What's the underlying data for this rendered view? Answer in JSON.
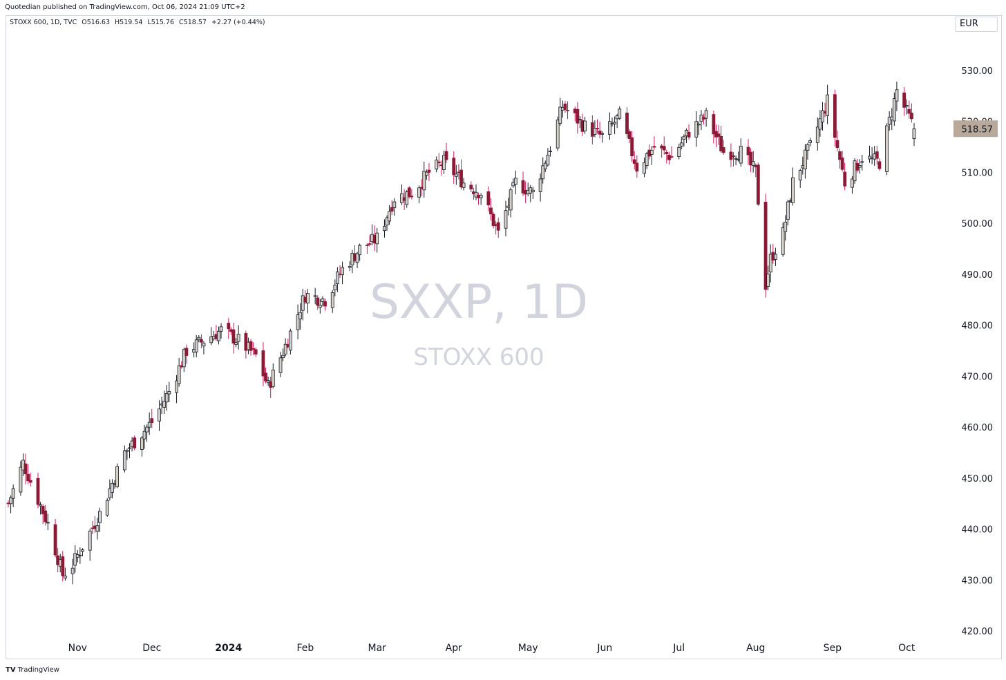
{
  "header": {
    "published": "Quotedian published on TradingView.com, Oct 06, 2024 21:09 UTC+2",
    "symbol_line": "STOXX 600, 1D, TVC",
    "open": "O516.63",
    "high": "H519.54",
    "low": "L515.76",
    "close": "C518.57",
    "change": "+2.27 (+0.44%)",
    "currency": "EUR"
  },
  "watermark": {
    "symbol": "SXXP, 1D",
    "name": "STOXX 600"
  },
  "footer": {
    "brand": "TradingView",
    "logo_icon": "tradingview-logo-icon"
  },
  "colors": {
    "up_body": "#d5d1c9",
    "up_border": "#131722",
    "down_body": "#8b1a36",
    "down_wick": "#d4145a",
    "last_price_bg": "#b8a99a"
  },
  "chart_data": {
    "type": "candlestick",
    "title": "STOXX 600, 1D, TVC",
    "ylim": [
      420,
      530
    ],
    "y_ticks": [
      "530.00",
      "520.00",
      "510.00",
      "500.00",
      "490.00",
      "480.00",
      "470.00",
      "460.00",
      "450.00",
      "440.00",
      "430.00",
      "420.00"
    ],
    "x_ticks": [
      "Nov",
      "Dec",
      "2024",
      "Feb",
      "Mar",
      "Apr",
      "May",
      "Jun",
      "Jul",
      "Aug",
      "Sep",
      "Oct"
    ],
    "last_price": "518.57",
    "close_series_key_points": [
      {
        "date": "2023-10-04",
        "close": 445
      },
      {
        "date": "2023-10-10",
        "close": 453
      },
      {
        "date": "2023-10-20",
        "close": 441
      },
      {
        "date": "2023-10-26",
        "close": 431
      },
      {
        "date": "2023-10-30",
        "close": 433
      },
      {
        "date": "2023-11-10",
        "close": 443
      },
      {
        "date": "2023-11-20",
        "close": 455
      },
      {
        "date": "2023-12-01",
        "close": 461
      },
      {
        "date": "2023-12-08",
        "close": 467
      },
      {
        "date": "2023-12-15",
        "close": 475
      },
      {
        "date": "2023-12-29",
        "close": 479
      },
      {
        "date": "2024-01-05",
        "close": 477
      },
      {
        "date": "2024-01-12",
        "close": 474
      },
      {
        "date": "2024-01-17",
        "close": 468
      },
      {
        "date": "2024-01-24",
        "close": 476
      },
      {
        "date": "2024-02-01",
        "close": 486
      },
      {
        "date": "2024-02-09",
        "close": 485
      },
      {
        "date": "2024-02-16",
        "close": 491
      },
      {
        "date": "2024-02-23",
        "close": 495
      },
      {
        "date": "2024-03-01",
        "close": 497
      },
      {
        "date": "2024-03-08",
        "close": 505
      },
      {
        "date": "2024-03-15",
        "close": 506
      },
      {
        "date": "2024-03-22",
        "close": 510
      },
      {
        "date": "2024-03-28",
        "close": 512
      },
      {
        "date": "2024-04-05",
        "close": 508
      },
      {
        "date": "2024-04-12",
        "close": 506
      },
      {
        "date": "2024-04-19",
        "close": 498
      },
      {
        "date": "2024-04-26",
        "close": 508
      },
      {
        "date": "2024-05-03",
        "close": 506
      },
      {
        "date": "2024-05-10",
        "close": 515
      },
      {
        "date": "2024-05-15",
        "close": 523
      },
      {
        "date": "2024-05-24",
        "close": 519
      },
      {
        "date": "2024-05-31",
        "close": 517
      },
      {
        "date": "2024-06-07",
        "close": 521
      },
      {
        "date": "2024-06-14",
        "close": 511
      },
      {
        "date": "2024-06-21",
        "close": 515
      },
      {
        "date": "2024-06-28",
        "close": 513
      },
      {
        "date": "2024-07-05",
        "close": 518
      },
      {
        "date": "2024-07-12",
        "close": 521
      },
      {
        "date": "2024-07-19",
        "close": 514
      },
      {
        "date": "2024-07-26",
        "close": 514
      },
      {
        "date": "2024-08-01",
        "close": 510
      },
      {
        "date": "2024-08-05",
        "close": 488
      },
      {
        "date": "2024-08-07",
        "close": 493
      },
      {
        "date": "2024-08-12",
        "close": 498
      },
      {
        "date": "2024-08-16",
        "close": 508
      },
      {
        "date": "2024-08-23",
        "close": 515
      },
      {
        "date": "2024-08-30",
        "close": 524
      },
      {
        "date": "2024-09-06",
        "close": 508
      },
      {
        "date": "2024-09-13",
        "close": 513
      },
      {
        "date": "2024-09-20",
        "close": 512
      },
      {
        "date": "2024-09-27",
        "close": 526
      },
      {
        "date": "2024-10-04",
        "close": 518.57
      }
    ]
  }
}
